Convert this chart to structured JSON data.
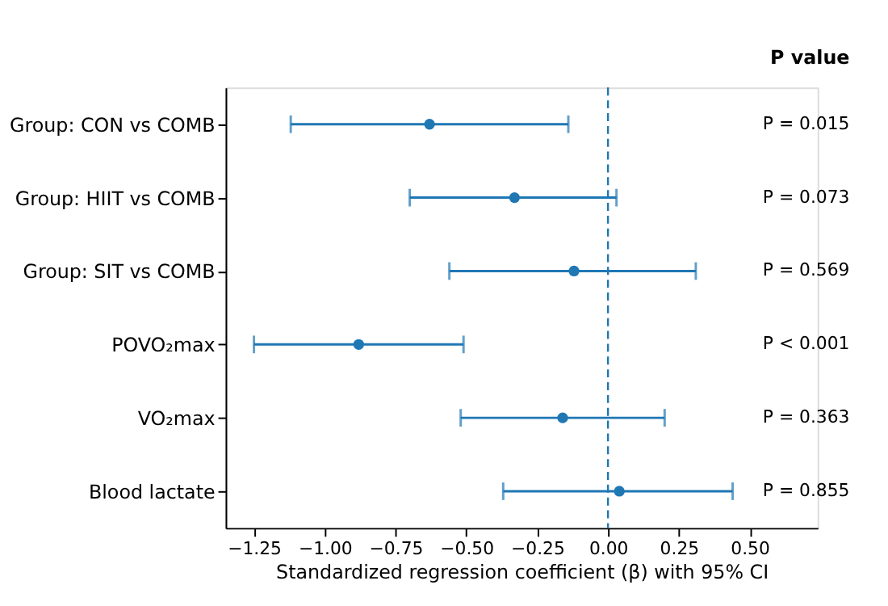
{
  "chart_data": {
    "type": "scatter",
    "orientation": "horizontal",
    "categories": [
      "Group: CON vs COMB",
      "Group: HIIT vs COMB",
      "Group: SIT vs COMB",
      "POVO₂max",
      "VO₂max",
      "Blood lactate"
    ],
    "values": [
      -0.63,
      -0.33,
      -0.12,
      -0.88,
      -0.16,
      0.04
    ],
    "errors": [
      [
        -1.12,
        -0.14
      ],
      [
        -0.7,
        0.03
      ],
      [
        -0.56,
        0.31
      ],
      [
        -1.25,
        -0.51
      ],
      [
        -0.52,
        0.2
      ],
      [
        -0.37,
        0.44
      ]
    ],
    "color": "#1f77b4",
    "marker": "circle",
    "xlim": [
      -1.35,
      0.74
    ],
    "xticks": [
      {
        "value": -1.25,
        "label": "−1.25"
      },
      {
        "value": -1.0,
        "label": "−1.00"
      },
      {
        "value": -0.75,
        "label": "−0.75"
      },
      {
        "value": -0.5,
        "label": "−0.50"
      },
      {
        "value": -0.25,
        "label": "−0.25"
      },
      {
        "value": 0,
        "label": "0.00"
      },
      {
        "value": 0.25,
        "label": "0.25"
      },
      {
        "value": 0.5,
        "label": "0.50"
      }
    ],
    "xlabel": "Standardized regression coefficient (β) with 95% CI",
    "ref_lines": [
      {
        "axis": "x",
        "value": 0,
        "line_style": "dashed",
        "color": "#1f77b4"
      }
    ],
    "grid": false,
    "annotations": [
      "P value",
      "P = 0.015",
      "P = 0.073",
      "P = 0.569",
      "P < 0.001",
      "P = 0.363",
      "P = 0.855"
    ]
  }
}
